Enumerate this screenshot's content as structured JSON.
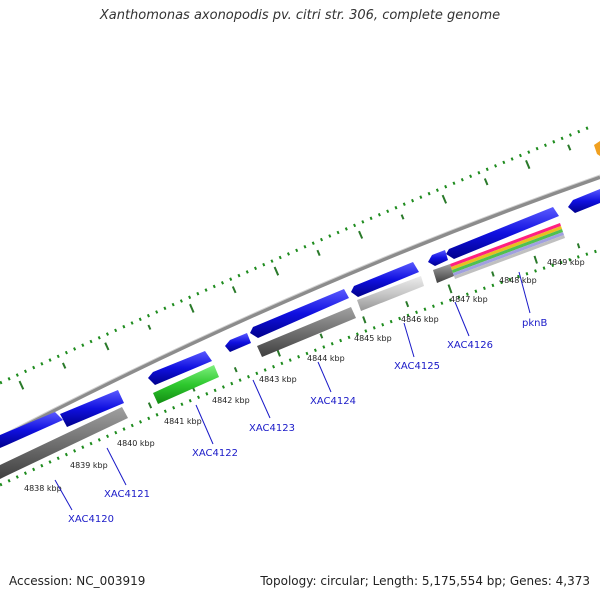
{
  "header": {
    "title": "Xanthomonas axonopodis pv. citri str. 306, complete genome"
  },
  "footer": {
    "accession": "Accession: NC_003919",
    "summary": "Topology: circular; Length: 5,175,554 bp; Genes: 4,373"
  },
  "ruler": {
    "ticks": [
      "4838 kbp",
      "4839 kbp",
      "4840 kbp",
      "4841 kbp",
      "4842 kbp",
      "4843 kbp",
      "4844 kbp",
      "4845 kbp",
      "4846 kbp",
      "4847 kbp",
      "4848 kbp",
      "4849 kbp"
    ]
  },
  "genes": [
    "XAC4120",
    "XAC4121",
    "XAC4122",
    "XAC4123",
    "XAC4124",
    "XAC4125",
    "XAC4126",
    "pknB"
  ],
  "colors": {
    "cds": "#1010e0",
    "gene_gray": "#707070",
    "light_gray": "#c8c8c8",
    "green": "#2ec82e",
    "backbone": "#8c8c8c",
    "gc_dots": "#1e8c1e",
    "orange": "#f0a020",
    "label_blue": "#1a1ac8"
  }
}
